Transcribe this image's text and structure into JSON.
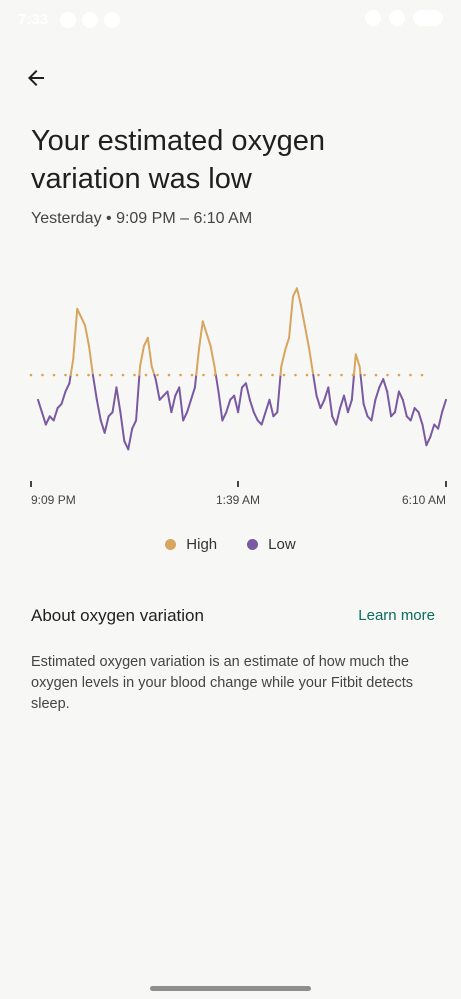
{
  "status_bar": {
    "time": "7:33"
  },
  "header": {
    "title": "Your estimated oxygen variation was low",
    "subtitle": "Yesterday • 9:09 PM – 6:10 AM"
  },
  "colors": {
    "high": "#d7a55f",
    "low": "#7a59a3",
    "baseline": "#e0a050",
    "accent": "#0b6b5f"
  },
  "chart_data": {
    "type": "line",
    "x_labels": [
      "9:09 PM",
      "1:39 AM",
      "6:10 AM"
    ],
    "threshold": 0,
    "ylim": [
      -1.15,
      1.15
    ],
    "series": [
      {
        "name": "Oxygen variation",
        "values": [
          -0.3,
          -0.45,
          -0.6,
          -0.5,
          -0.55,
          -0.4,
          -0.35,
          -0.2,
          -0.1,
          0.2,
          0.8,
          0.7,
          0.6,
          0.35,
          0.0,
          -0.3,
          -0.55,
          -0.7,
          -0.5,
          -0.45,
          -0.15,
          -0.45,
          -0.8,
          -0.9,
          -0.65,
          -0.55,
          0.1,
          0.35,
          0.45,
          0.1,
          -0.05,
          -0.3,
          -0.25,
          -0.2,
          -0.45,
          -0.25,
          -0.15,
          -0.55,
          -0.45,
          -0.3,
          -0.15,
          0.3,
          0.65,
          0.5,
          0.35,
          0.1,
          -0.2,
          -0.55,
          -0.45,
          -0.3,
          -0.25,
          -0.45,
          -0.15,
          -0.1,
          -0.3,
          -0.45,
          -0.55,
          -0.6,
          -0.45,
          -0.3,
          -0.5,
          -0.45,
          0.1,
          0.3,
          0.45,
          0.95,
          1.05,
          0.85,
          0.6,
          0.35,
          0.05,
          -0.25,
          -0.4,
          -0.3,
          -0.15,
          -0.5,
          -0.6,
          -0.4,
          -0.25,
          -0.45,
          -0.3,
          0.25,
          0.1,
          -0.35,
          -0.5,
          -0.55,
          -0.3,
          -0.15,
          -0.05,
          -0.2,
          -0.5,
          -0.45,
          -0.2,
          -0.3,
          -0.5,
          -0.55,
          -0.4,
          -0.45,
          -0.6,
          -0.85,
          -0.75,
          -0.6,
          -0.65,
          -0.45,
          -0.3
        ]
      }
    ]
  },
  "legend": {
    "high_label": "High",
    "low_label": "Low"
  },
  "about": {
    "heading": "About oxygen variation",
    "learn_more": "Learn more",
    "description": "Estimated oxygen variation is an estimate of how much the oxygen levels in your blood change while your Fitbit detects sleep."
  }
}
